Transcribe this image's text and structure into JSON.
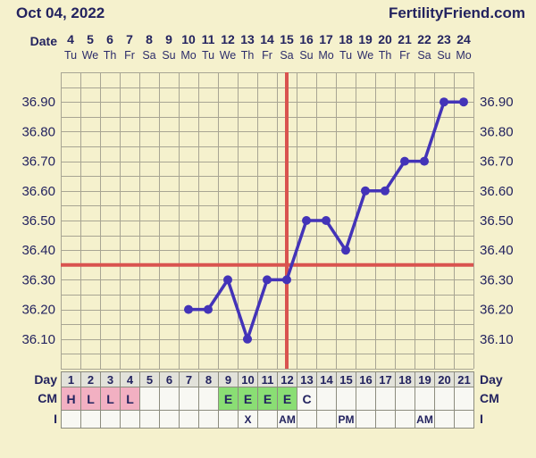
{
  "header": {
    "date_title": "Oct 04, 2022",
    "brand": "FertilityFriend.com"
  },
  "top_axis": {
    "date_label": "Date",
    "dates": [
      "4",
      "5",
      "6",
      "7",
      "8",
      "9",
      "10",
      "11",
      "12",
      "13",
      "14",
      "15",
      "16",
      "17",
      "18",
      "19",
      "20",
      "21",
      "22",
      "23",
      "24"
    ],
    "weekdays": [
      "Tu",
      "We",
      "Th",
      "Fr",
      "Sa",
      "Su",
      "Mo",
      "Tu",
      "We",
      "Th",
      "Fr",
      "Sa",
      "Su",
      "Mo",
      "Tu",
      "We",
      "Th",
      "Fr",
      "Sa",
      "Su",
      "Mo"
    ]
  },
  "chart_data": {
    "type": "line",
    "series_name": "basal-body-temperature",
    "days": [
      1,
      2,
      3,
      4,
      5,
      6,
      7,
      8,
      9,
      10,
      11,
      12,
      13,
      14,
      15,
      16,
      17,
      18,
      19,
      20,
      21
    ],
    "temperatures": [
      null,
      null,
      null,
      null,
      null,
      null,
      36.2,
      36.2,
      36.3,
      36.1,
      36.3,
      36.3,
      36.5,
      36.5,
      36.4,
      36.6,
      36.6,
      36.7,
      36.7,
      36.9,
      36.9
    ],
    "y_ticks": [
      "36.90",
      "36.80",
      "36.70",
      "36.60",
      "36.50",
      "36.40",
      "36.30",
      "36.20",
      "36.10"
    ],
    "ylim": [
      36.0,
      37.0
    ],
    "minor_step": 0.05,
    "grid": "on",
    "coverline_temp": 36.35,
    "ovulation_day": 12,
    "legend_position": "none"
  },
  "bottom_table": {
    "day_row": {
      "label": "Day",
      "values": [
        "1",
        "2",
        "3",
        "4",
        "5",
        "6",
        "7",
        "8",
        "9",
        "10",
        "11",
        "12",
        "13",
        "14",
        "15",
        "16",
        "17",
        "18",
        "19",
        "20",
        "21"
      ]
    },
    "cm_row": {
      "label": "CM",
      "values": [
        "H",
        "L",
        "L",
        "L",
        "",
        "",
        "",
        "",
        "E",
        "E",
        "E",
        "E",
        "C",
        "",
        "",
        "",
        "",
        "",
        "",
        "",
        ""
      ],
      "types": [
        "menses",
        "menses",
        "menses",
        "menses",
        "plain",
        "plain",
        "plain",
        "plain",
        "eggwhite",
        "eggwhite",
        "eggwhite",
        "eggwhite",
        "plain",
        "plain",
        "plain",
        "plain",
        "plain",
        "plain",
        "plain",
        "plain",
        "plain"
      ]
    },
    "intercourse_row": {
      "label": "I",
      "values": [
        "",
        "",
        "",
        "",
        "",
        "",
        "",
        "",
        "",
        "X",
        "",
        "AM",
        "",
        "",
        "PM",
        "",
        "",
        "",
        "AM",
        "",
        ""
      ]
    }
  },
  "colors": {
    "background": "#f5f1cd",
    "text_navy": "#23235f",
    "line_purple": "#4333b8",
    "crosshair_red": "#d9534f",
    "grid_line": "#a8a593",
    "cell_border": "#8c8c7e",
    "menses_pink": "#f2b0c2",
    "eggwhite_green": "#8ade74",
    "day_cell_gray": "#e2e2da",
    "cell_white": "#f8f8f3"
  }
}
